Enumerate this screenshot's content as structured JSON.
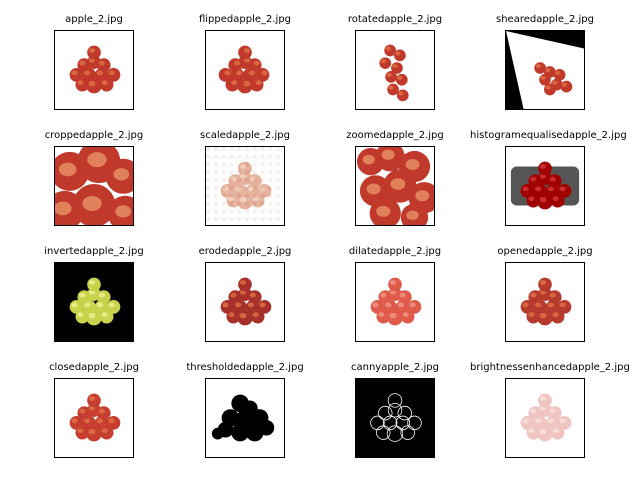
{
  "images": [
    {
      "title": "apple_2.jpg",
      "style": "normal",
      "icon": "apple-pile-icon"
    },
    {
      "title": "flippedapple_2.jpg",
      "style": "flipped",
      "icon": "apple-pile-icon"
    },
    {
      "title": "rotatedapple_2.jpg",
      "style": "rotated",
      "icon": "apple-pile-icon"
    },
    {
      "title": "shearedapple_2.jpg",
      "style": "sheared",
      "icon": "apple-pile-icon"
    },
    {
      "title": "croppedapple_2.jpg",
      "style": "cropped",
      "icon": "apple-pile-icon"
    },
    {
      "title": "scaledapple_2.jpg",
      "style": "scaled",
      "icon": "apple-pile-icon"
    },
    {
      "title": "zoomedapple_2.jpg",
      "style": "zoomed",
      "icon": "apple-pile-icon"
    },
    {
      "title": "histogramequalisedapple_2.jpg",
      "style": "histeq",
      "icon": "apple-pile-icon"
    },
    {
      "title": "invertedapple_2.jpg",
      "style": "inverted",
      "icon": "apple-pile-icon"
    },
    {
      "title": "erodedapple_2.jpg",
      "style": "eroded",
      "icon": "apple-pile-icon"
    },
    {
      "title": "dilatedapple_2.jpg",
      "style": "dilated",
      "icon": "apple-pile-icon"
    },
    {
      "title": "openedapple_2.jpg",
      "style": "opened",
      "icon": "apple-pile-icon"
    },
    {
      "title": "closedapple_2.jpg",
      "style": "closed",
      "icon": "apple-pile-icon"
    },
    {
      "title": "thresholdedapple_2.jpg",
      "style": "threshold",
      "icon": "apple-silhouette-icon"
    },
    {
      "title": "cannyapple_2.jpg",
      "style": "canny",
      "icon": "apple-edges-icon"
    },
    {
      "title": "brightnessenhancedapple_2.jpg",
      "style": "bright",
      "icon": "apple-pile-icon"
    }
  ]
}
